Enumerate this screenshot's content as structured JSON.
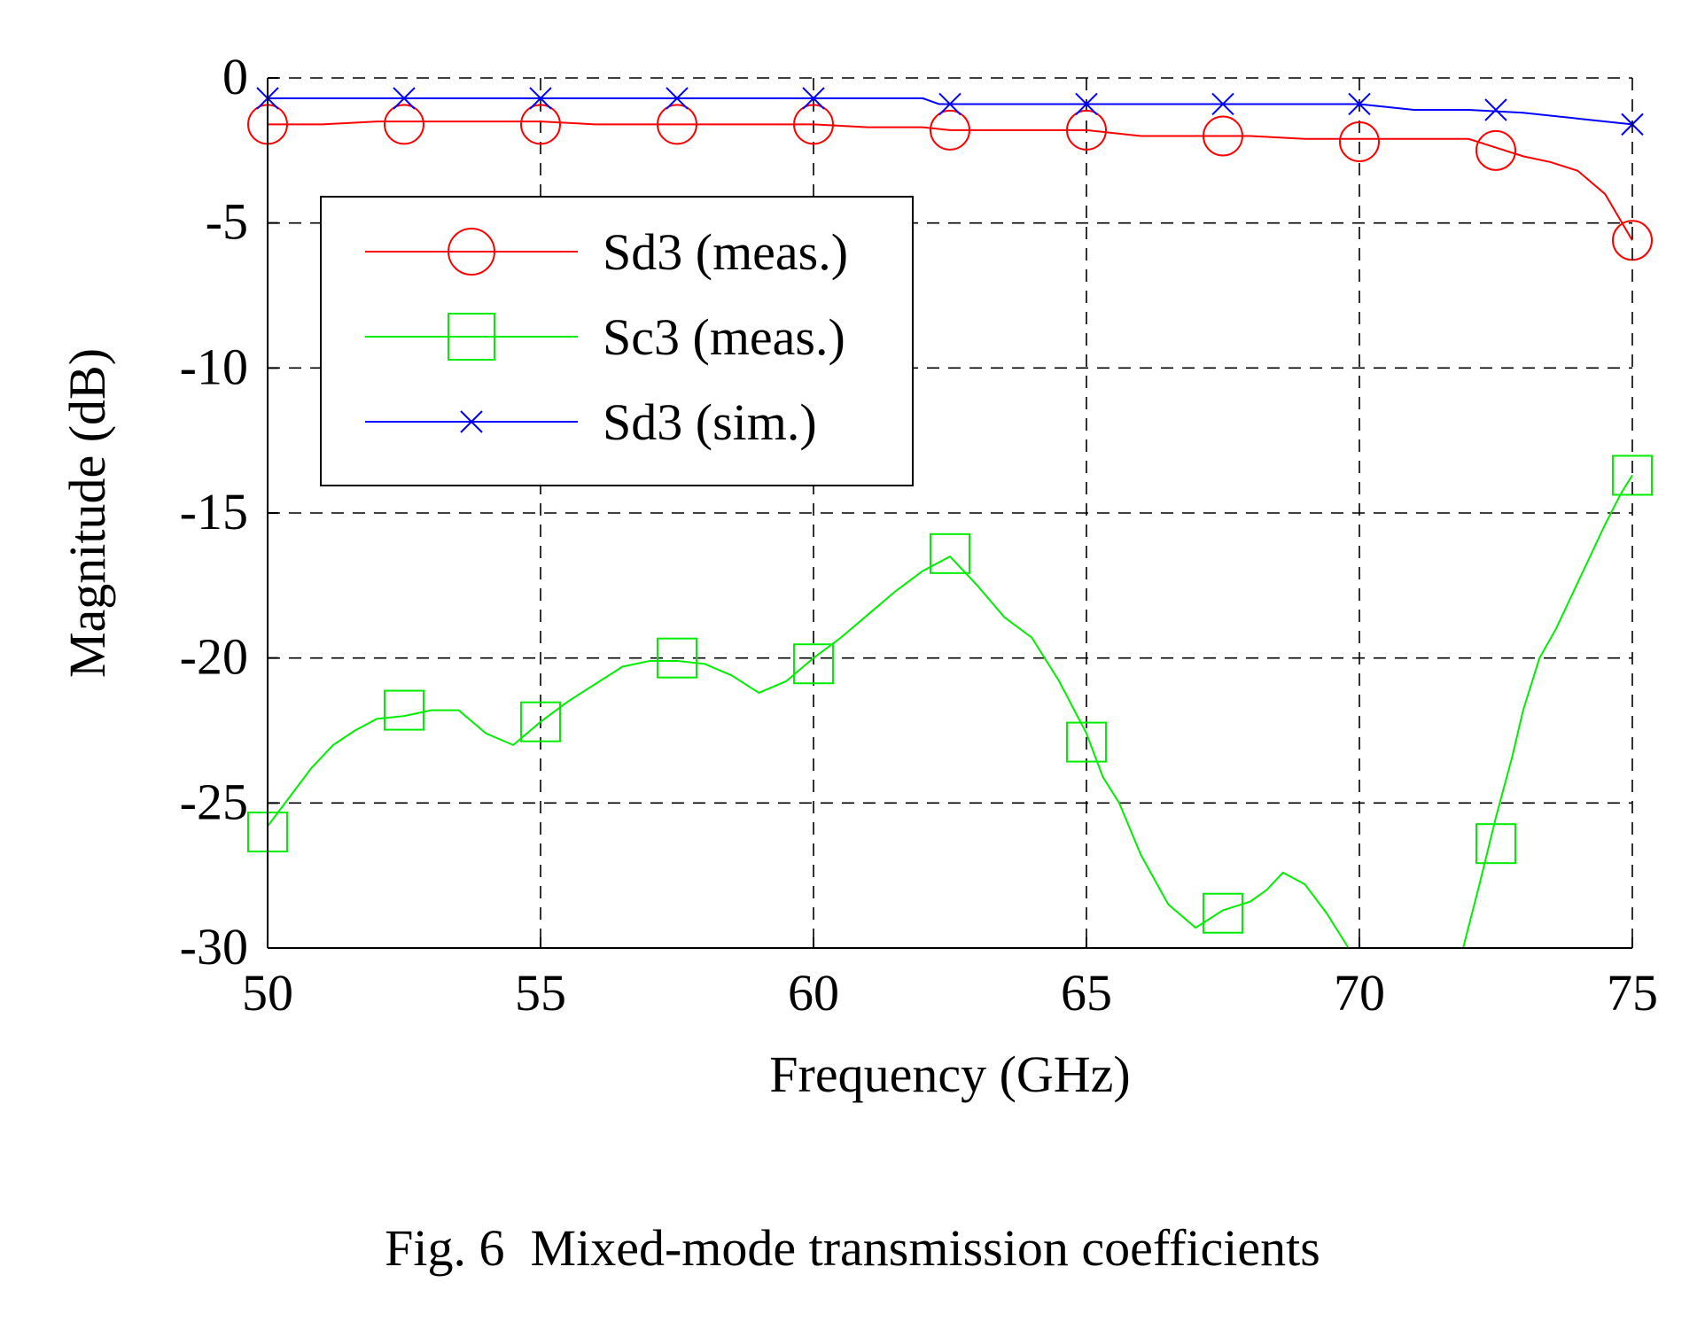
{
  "caption": "Fig. 6  Mixed-mode transmission coefficients",
  "chart_data": {
    "type": "line",
    "title": "",
    "xlabel": "Frequency (GHz)",
    "ylabel": "Magnitude (dB)",
    "xlim": [
      50,
      75
    ],
    "ylim": [
      -30,
      0
    ],
    "xticks": [
      50,
      55,
      60,
      65,
      70,
      75
    ],
    "yticks": [
      0,
      -5,
      -10,
      -15,
      -20,
      -25,
      -30
    ],
    "grid": true,
    "grid_style": "dashed",
    "legend_position": "top-left",
    "series": [
      {
        "name": "Sd3 (meas.)",
        "color": "#ff0000",
        "marker": "circle",
        "x": [
          50,
          51,
          52,
          53,
          54,
          55,
          56,
          57,
          58,
          59,
          60,
          61,
          62,
          62.5,
          63,
          64,
          65,
          66,
          67,
          67.5,
          68,
          69,
          70,
          71,
          72,
          72.5,
          73,
          73.5,
          74,
          74.5,
          75
        ],
        "y": [
          -1.6,
          -1.6,
          -1.5,
          -1.5,
          -1.5,
          -1.5,
          -1.6,
          -1.6,
          -1.6,
          -1.6,
          -1.6,
          -1.7,
          -1.7,
          -1.8,
          -1.8,
          -1.8,
          -1.8,
          -2.0,
          -2.0,
          -2.0,
          -2.0,
          -2.1,
          -2.1,
          -2.1,
          -2.1,
          -2.4,
          -2.7,
          -2.9,
          -3.2,
          -4.0,
          -5.6
        ],
        "marker_x": [
          50,
          52.5,
          55,
          57.5,
          60,
          62.5,
          65,
          67.5,
          70,
          72.5,
          75
        ],
        "marker_y": [
          -1.6,
          -1.6,
          -1.6,
          -1.6,
          -1.6,
          -1.8,
          -1.8,
          -2.0,
          -2.2,
          -2.5,
          -5.6
        ]
      },
      {
        "name": "Sc3 (meas.)",
        "color": "#00ee00",
        "marker": "square",
        "x": [
          50,
          50.4,
          50.8,
          51.2,
          51.6,
          52,
          52.5,
          53,
          53.5,
          54,
          54.5,
          55,
          55.5,
          56,
          56.5,
          57,
          57.5,
          58,
          58.5,
          59,
          59.5,
          60,
          60.5,
          61,
          61.5,
          62,
          62.5,
          63,
          63.5,
          64,
          64.5,
          65,
          65.3,
          65.6,
          66,
          66.5,
          67,
          67.5,
          68,
          68.3,
          68.6,
          69,
          69.4,
          69.8
        ],
        "y": [
          -25.8,
          -24.8,
          -23.8,
          -23.0,
          -22.5,
          -22.1,
          -22.0,
          -21.8,
          -21.8,
          -22.6,
          -23.0,
          -22.2,
          -21.5,
          -20.9,
          -20.3,
          -20.1,
          -20.1,
          -20.2,
          -20.6,
          -21.2,
          -20.8,
          -20.0,
          -19.3,
          -18.5,
          -17.7,
          -17.0,
          -16.5,
          -17.5,
          -18.6,
          -19.3,
          -20.8,
          -22.6,
          -24.1,
          -25.0,
          -26.8,
          -28.5,
          -29.3,
          -28.7,
          -28.4,
          -28.0,
          -27.4,
          -27.8,
          -28.8,
          -30.0
        ],
        "marker_x": [
          50,
          52.5,
          55,
          57.5,
          60,
          62.5,
          65,
          67.5,
          72.5,
          75
        ],
        "marker_y": [
          -26.0,
          -21.8,
          -22.2,
          -20.0,
          -20.2,
          -16.4,
          -22.9,
          -28.8,
          -26.4,
          -13.7
        ]
      },
      {
        "name": "Sc3 (meas.)",
        "color": "#00ee00",
        "marker": "none",
        "x": [
          71.9,
          72.2,
          72.5,
          72.8,
          73.0,
          73.3,
          73.6,
          73.9,
          74.2,
          74.5,
          74.8,
          75
        ],
        "y": [
          -30.0,
          -27.8,
          -25.5,
          -23.4,
          -21.8,
          -20.0,
          -19.0,
          -17.8,
          -16.6,
          -15.4,
          -14.3,
          -13.7
        ]
      },
      {
        "name": "Sd3 (sim.)",
        "color": "#0000ff",
        "marker": "x",
        "x": [
          50,
          52,
          54,
          56,
          58,
          60,
          62,
          62.3,
          64,
          66,
          68,
          70,
          71,
          72,
          73,
          74,
          75
        ],
        "y": [
          -0.7,
          -0.7,
          -0.7,
          -0.7,
          -0.7,
          -0.7,
          -0.7,
          -0.9,
          -0.9,
          -0.9,
          -0.9,
          -0.9,
          -1.1,
          -1.1,
          -1.2,
          -1.4,
          -1.6
        ],
        "marker_x": [
          50,
          52.5,
          55,
          57.5,
          60,
          62.5,
          65,
          67.5,
          70,
          72.5,
          75
        ],
        "marker_y": [
          -0.7,
          -0.7,
          -0.7,
          -0.7,
          -0.7,
          -0.9,
          -0.9,
          -0.9,
          -0.9,
          -1.1,
          -1.6
        ]
      }
    ],
    "legend": [
      {
        "label": "Sd3 (meas.)",
        "color": "#ff0000",
        "marker": "circle"
      },
      {
        "label": "Sc3 (meas.)",
        "color": "#00ee00",
        "marker": "square"
      },
      {
        "label": "Sd3 (sim.)",
        "color": "#0000ff",
        "marker": "x"
      }
    ]
  }
}
